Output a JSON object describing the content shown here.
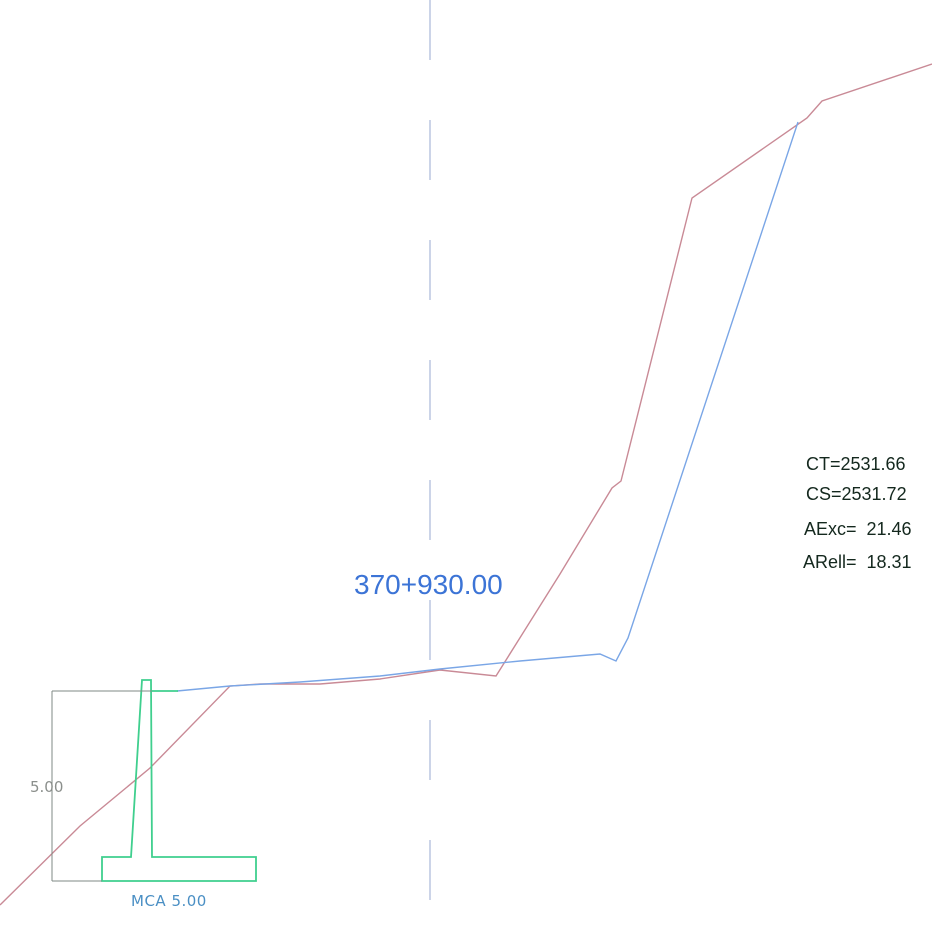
{
  "section": {
    "station": "370+930.00",
    "ct_label": "CT=2531.66",
    "cs_label": "CS=2531.72",
    "aexc_label": "AExc=  21.46",
    "arell_label": "ARell=  18.31"
  },
  "retaining_wall": {
    "height_label": "5.00",
    "name_label": "MCA  5.00"
  },
  "colors": {
    "terrain": "#c98a96",
    "design": "#7aa6e6",
    "wall": "#3fcf8e",
    "centerline": "#a9b8d8",
    "dimension": "#7f8a84",
    "station_text": "#3c74d6",
    "info_text": "#14281e"
  }
}
